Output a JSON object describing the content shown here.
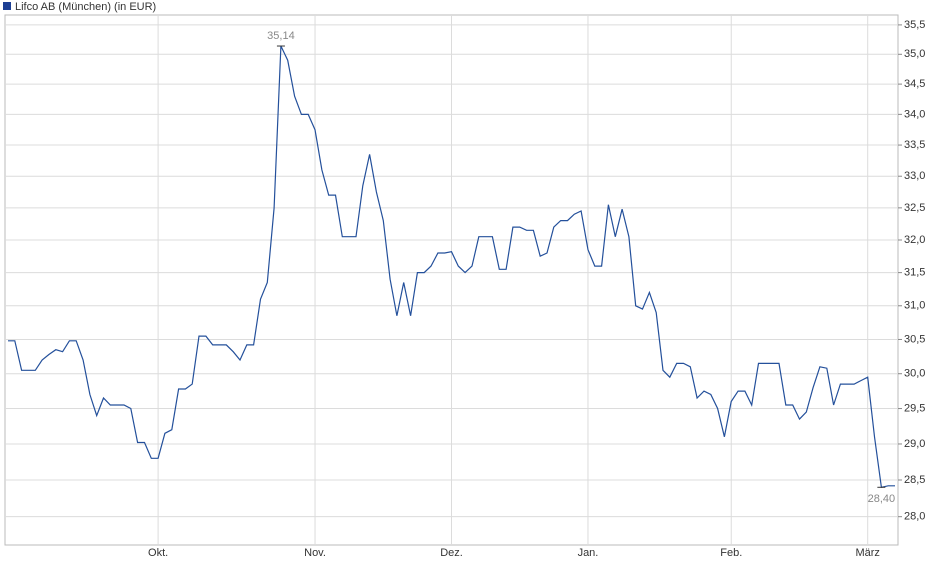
{
  "chart_data": {
    "type": "line",
    "legend": "Lifco AB (München) (in EUR)",
    "legend_color": "#1c3f94",
    "yscale": "log",
    "grid": true,
    "ylim": [
      27.62,
      35.67
    ],
    "yticks": [
      {
        "value": 28,
        "label": "28,0"
      },
      {
        "value": 28.5,
        "label": "28,5"
      },
      {
        "value": 29,
        "label": "29,0"
      },
      {
        "value": 29.5,
        "label": "29,5"
      },
      {
        "value": 30,
        "label": "30,0"
      },
      {
        "value": 30.5,
        "label": "30,5"
      },
      {
        "value": 31,
        "label": "31,0"
      },
      {
        "value": 31.5,
        "label": "31,5"
      },
      {
        "value": 32,
        "label": "32,0"
      },
      {
        "value": 32.5,
        "label": "32,5"
      },
      {
        "value": 33,
        "label": "33,0"
      },
      {
        "value": 33.5,
        "label": "33,5"
      },
      {
        "value": 34,
        "label": "34,0"
      },
      {
        "value": 34.5,
        "label": "34,5"
      },
      {
        "value": 35,
        "label": "35,0"
      },
      {
        "value": 35.5,
        "label": "35,5"
      }
    ],
    "categories": [
      null,
      null,
      null,
      null,
      null,
      null,
      null,
      null,
      null,
      null,
      null,
      null,
      null,
      null,
      null,
      null,
      null,
      null,
      null,
      null,
      null,
      null,
      "Okt.",
      null,
      null,
      null,
      null,
      null,
      null,
      null,
      null,
      null,
      null,
      null,
      null,
      null,
      null,
      null,
      null,
      null,
      null,
      null,
      null,
      null,
      null,
      "Nov.",
      null,
      null,
      null,
      null,
      null,
      null,
      null,
      null,
      null,
      null,
      null,
      null,
      null,
      null,
      null,
      null,
      null,
      null,
      null,
      "Dez.",
      null,
      null,
      null,
      null,
      null,
      null,
      null,
      null,
      null,
      null,
      null,
      null,
      null,
      null,
      null,
      null,
      null,
      null,
      null,
      "Jan.",
      null,
      null,
      null,
      null,
      null,
      null,
      null,
      null,
      null,
      null,
      null,
      null,
      null,
      null,
      null,
      null,
      null,
      null,
      null,
      null,
      "Feb.",
      null,
      null,
      null,
      null,
      null,
      null,
      null,
      null,
      null,
      null,
      null,
      null,
      null,
      null,
      null,
      null,
      null,
      null,
      null,
      "März",
      null,
      null,
      null,
      null
    ],
    "series": [
      {
        "name": "Lifco AB (München) (in EUR)",
        "color": "#24509b",
        "values": [
          30.48,
          30.48,
          30.05,
          30.05,
          30.05,
          30.2,
          30.28,
          30.35,
          30.32,
          30.48,
          30.48,
          30.2,
          29.7,
          29.4,
          29.65,
          29.55,
          29.55,
          29.55,
          29.5,
          29.02,
          29.02,
          28.8,
          28.8,
          29.15,
          29.2,
          29.78,
          29.78,
          29.85,
          30.55,
          30.55,
          30.42,
          30.42,
          30.42,
          30.32,
          30.2,
          30.42,
          30.42,
          31.1,
          31.35,
          32.5,
          35.14,
          34.9,
          34.3,
          34.0,
          34.0,
          33.75,
          33.1,
          32.7,
          32.7,
          32.05,
          32.05,
          32.05,
          32.85,
          33.35,
          32.75,
          32.3,
          31.4,
          30.85,
          31.35,
          30.85,
          31.5,
          31.5,
          31.6,
          31.8,
          31.8,
          31.82,
          31.6,
          31.5,
          31.6,
          32.05,
          32.05,
          32.05,
          31.55,
          31.55,
          32.2,
          32.2,
          32.15,
          32.15,
          31.75,
          31.8,
          32.2,
          32.3,
          32.3,
          32.4,
          32.45,
          31.85,
          31.6,
          31.6,
          32.55,
          32.05,
          32.48,
          32.05,
          31.0,
          30.95,
          31.2,
          30.9,
          30.05,
          29.95,
          30.15,
          30.15,
          30.1,
          29.65,
          29.75,
          29.7,
          29.5,
          29.1,
          29.6,
          29.75,
          29.75,
          29.55,
          30.15,
          30.15,
          30.15,
          30.15,
          29.55,
          29.55,
          29.35,
          29.45,
          29.8,
          30.1,
          30.08,
          29.55,
          29.85,
          29.85,
          29.85,
          29.9,
          29.95,
          29.1,
          28.4,
          28.42,
          28.42
        ],
        "value_labels": [
          null,
          null,
          null,
          null,
          null,
          null,
          null,
          null,
          null,
          null,
          null,
          null,
          null,
          null,
          null,
          null,
          null,
          null,
          null,
          null,
          null,
          null,
          null,
          null,
          null,
          null,
          null,
          null,
          null,
          null,
          null,
          null,
          null,
          null,
          null,
          null,
          null,
          null,
          null,
          null,
          "35,14",
          null,
          null,
          null,
          null,
          null,
          null,
          null,
          null,
          null,
          null,
          null,
          null,
          null,
          null,
          null,
          null,
          null,
          null,
          null,
          null,
          null,
          null,
          null,
          null,
          null,
          null,
          null,
          null,
          null,
          null,
          null,
          null,
          null,
          null,
          null,
          null,
          null,
          null,
          null,
          null,
          null,
          null,
          null,
          null,
          null,
          null,
          null,
          null,
          null,
          null,
          null,
          null,
          null,
          null,
          null,
          null,
          null,
          null,
          null,
          null,
          null,
          null,
          null,
          null,
          null,
          null,
          null,
          null,
          null,
          null,
          null,
          null,
          null,
          null,
          null,
          null,
          null,
          null,
          null,
          null,
          null,
          null,
          null,
          null,
          null,
          null,
          null,
          "28,40",
          null,
          null
        ]
      }
    ]
  }
}
